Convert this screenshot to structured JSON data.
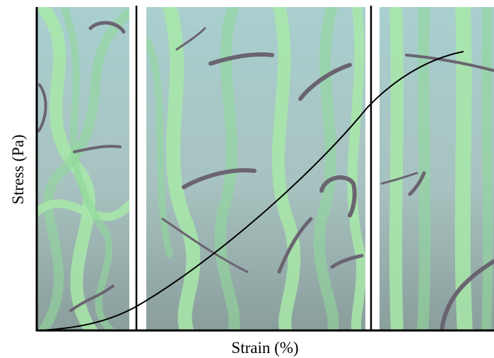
{
  "axes": {
    "x_label": "Strain (%)",
    "y_label": "Stress (Pa)"
  }
}
